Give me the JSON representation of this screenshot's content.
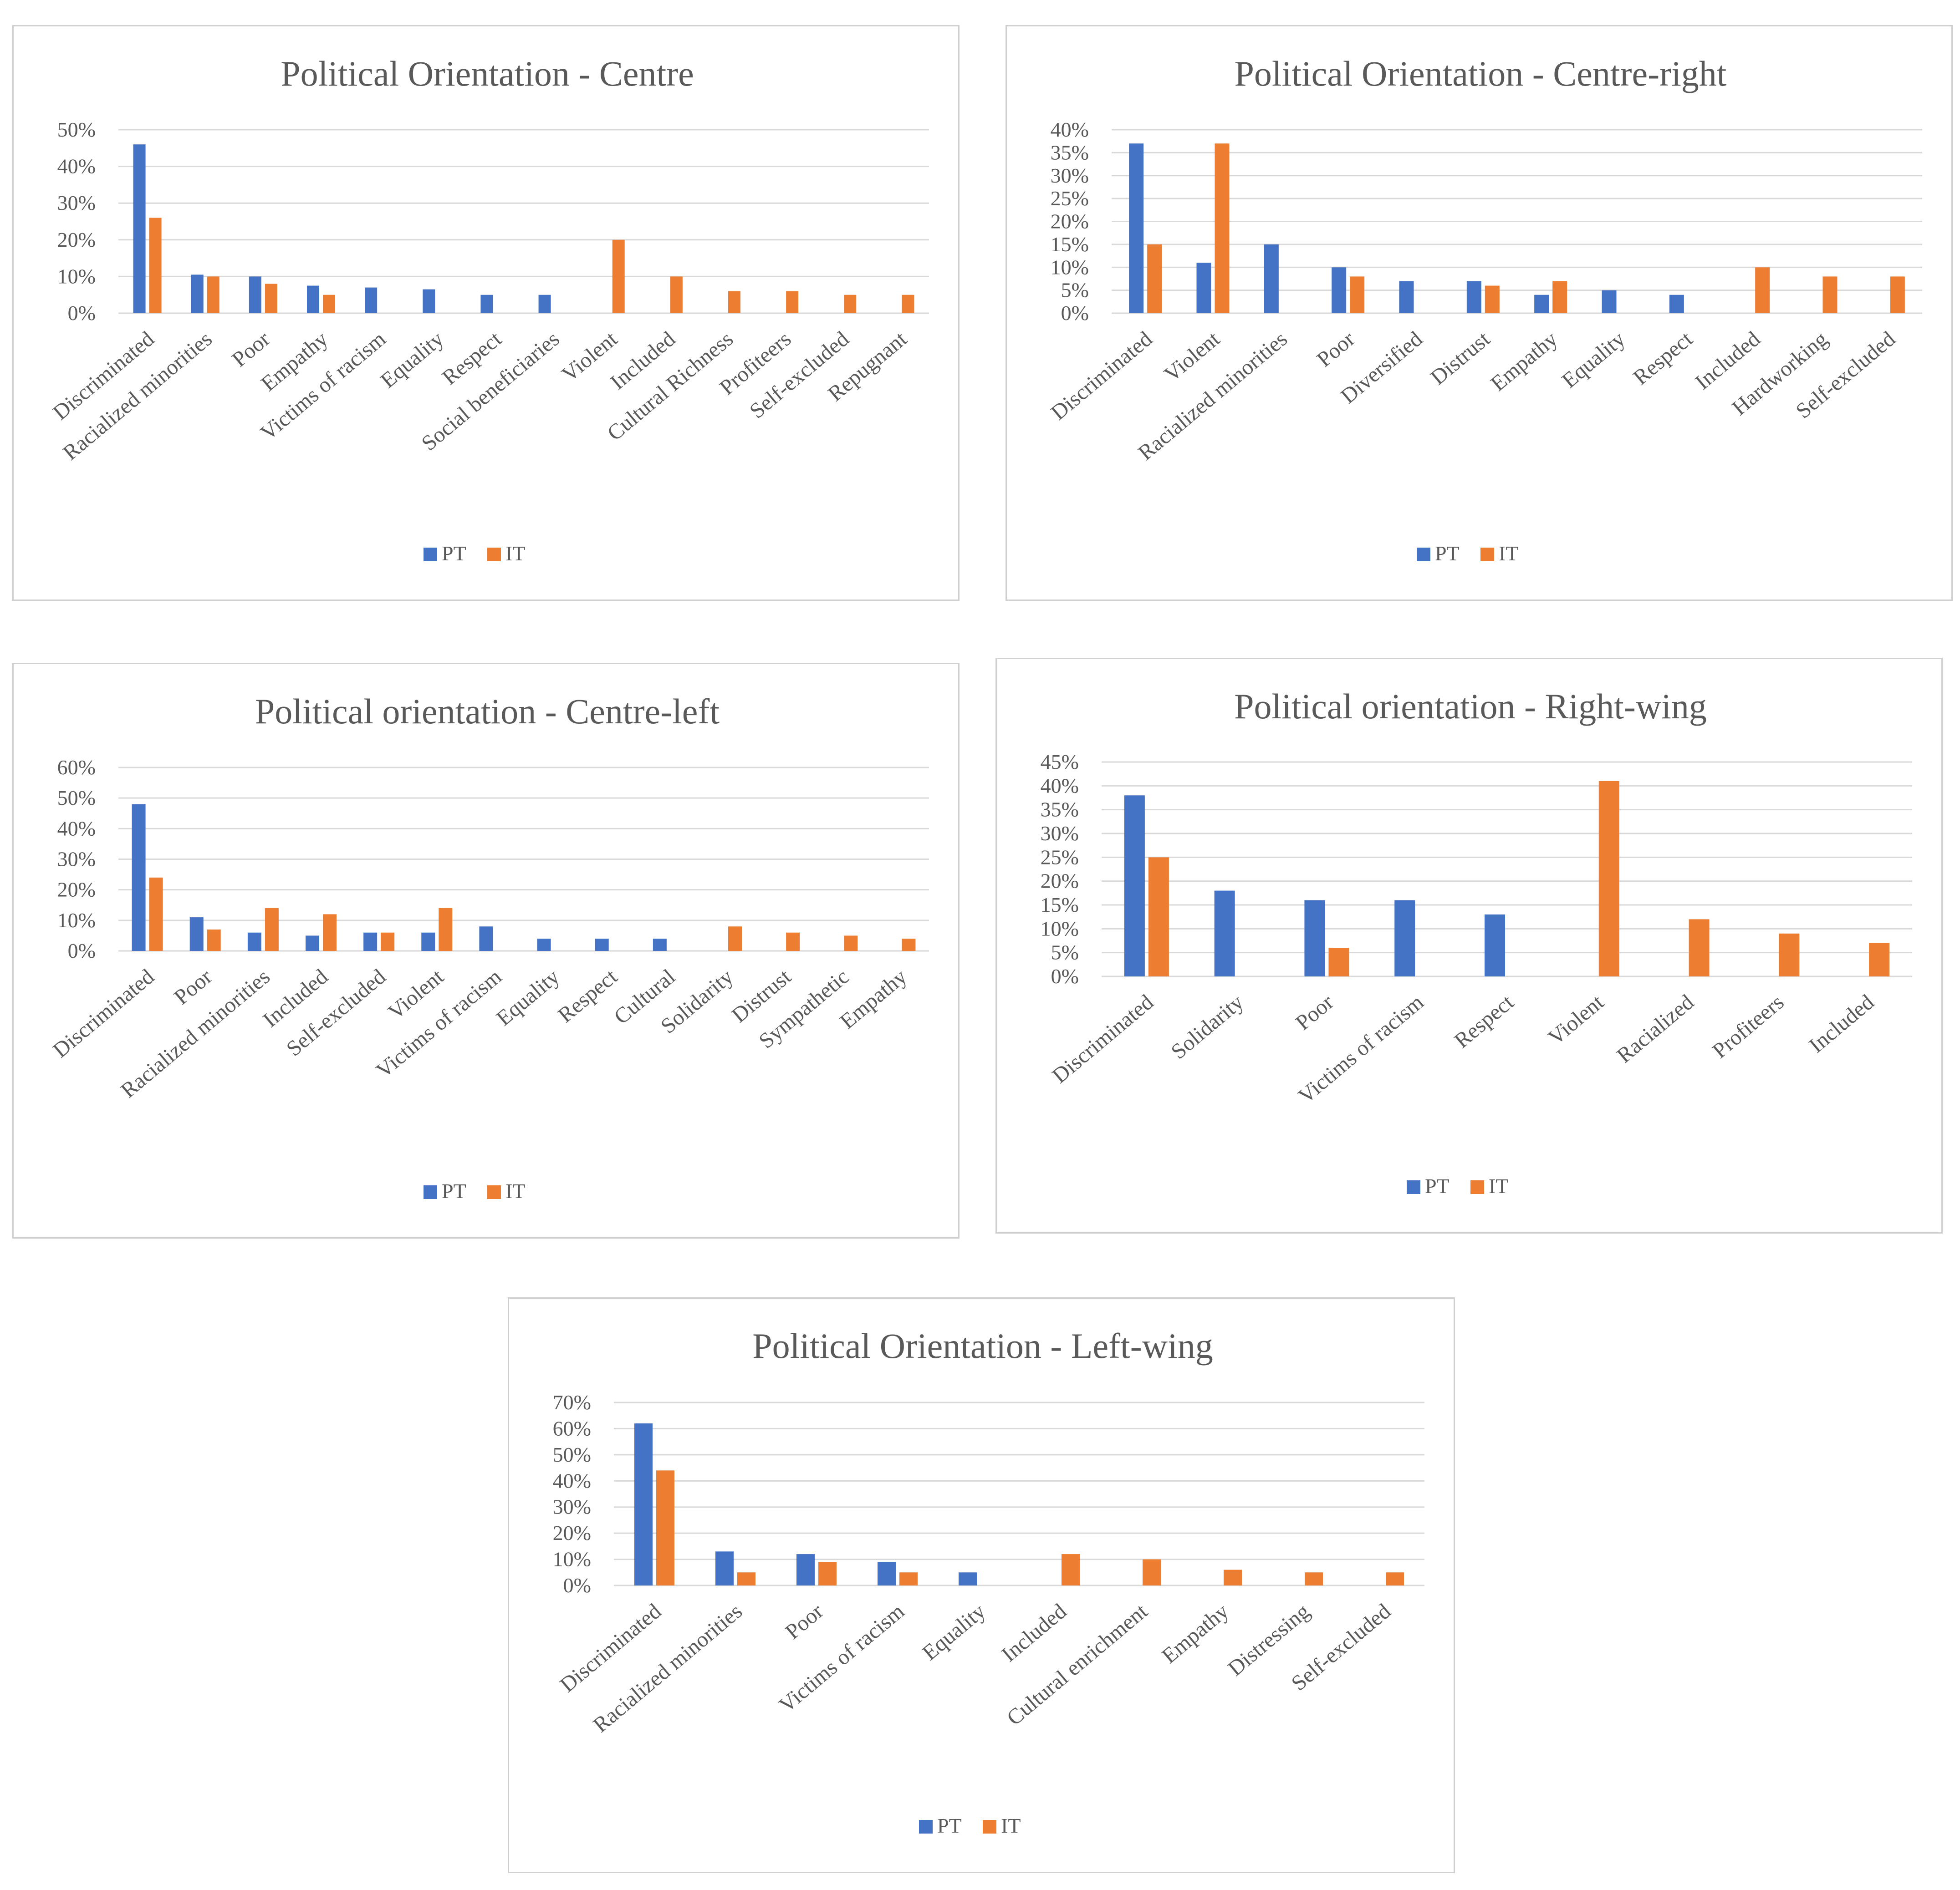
{
  "colors": {
    "PT": "#4472C4",
    "IT": "#ED7D31"
  },
  "chart_data": [
    {
      "type": "bar",
      "title": "Political Orientation - Centre",
      "categories": [
        "Discriminated",
        "Racialized minorities",
        "Poor",
        "Empathy",
        "Victims of racism",
        "Equality",
        "Respect",
        "Social beneficiaries",
        "Violent",
        "Included",
        "Cultural Richness",
        "Profiteers",
        "Self-excluded",
        "Repugnant"
      ],
      "series": [
        {
          "name": "PT",
          "values": [
            46,
            10.5,
            10,
            7.5,
            7,
            6.5,
            5,
            5,
            0,
            0,
            0,
            0,
            0,
            0
          ]
        },
        {
          "name": "IT",
          "values": [
            26,
            10,
            8,
            5,
            0,
            0,
            0,
            0,
            20,
            10,
            6,
            6,
            5,
            5
          ]
        }
      ],
      "yticks": [
        "0%",
        "10%",
        "20%",
        "30%",
        "40%",
        "50%"
      ],
      "ylim": [
        0,
        50
      ],
      "xlabel": "",
      "ylabel": "",
      "legend": "bottom"
    },
    {
      "type": "bar",
      "title": "Political Orientation - Centre-right",
      "categories": [
        "Discriminated",
        "Violent",
        "Racialized minorities",
        "Poor",
        "Diversified",
        "Distrust",
        "Empathy",
        "Equality",
        "Respect",
        "Included",
        "Hardworking",
        "Self-excluded"
      ],
      "series": [
        {
          "name": "PT",
          "values": [
            37,
            11,
            15,
            10,
            7,
            7,
            4,
            5,
            4,
            0,
            0,
            0
          ]
        },
        {
          "name": "IT",
          "values": [
            15,
            37,
            0,
            8,
            0,
            6,
            7,
            0,
            0,
            10,
            8,
            8
          ]
        }
      ],
      "yticks": [
        "0%",
        "5%",
        "10%",
        "15%",
        "20%",
        "25%",
        "30%",
        "35%",
        "40%"
      ],
      "ylim": [
        0,
        40
      ],
      "xlabel": "",
      "ylabel": "",
      "legend": "bottom"
    },
    {
      "type": "bar",
      "title": "Political orientation - Centre-left",
      "categories": [
        "Discriminated",
        "Poor",
        "Racialized minorities",
        "Included",
        "Self-excluded",
        "Violent",
        "Victims of racism",
        "Equality",
        "Respect",
        "Cultural",
        "Solidarity",
        "Distrust",
        "Sympathetic",
        "Empathy"
      ],
      "series": [
        {
          "name": "PT",
          "values": [
            48,
            11,
            6,
            5,
            6,
            6,
            8,
            4,
            4,
            4,
            0,
            0,
            0,
            0
          ]
        },
        {
          "name": "IT",
          "values": [
            24,
            7,
            14,
            12,
            6,
            14,
            0,
            0,
            0,
            0,
            8,
            6,
            5,
            4
          ]
        }
      ],
      "yticks": [
        "0%",
        "10%",
        "20%",
        "30%",
        "40%",
        "50%",
        "60%"
      ],
      "ylim": [
        0,
        60
      ],
      "xlabel": "",
      "ylabel": "",
      "legend": "bottom"
    },
    {
      "type": "bar",
      "title": "Political orientation - Right-wing",
      "categories": [
        "Discriminated",
        "Solidarity",
        "Poor",
        "Victims of racism",
        "Respect",
        "Violent",
        "Racialized",
        "Profiteers",
        "Included"
      ],
      "series": [
        {
          "name": "PT",
          "values": [
            38,
            18,
            16,
            16,
            13,
            0,
            0,
            0,
            0
          ]
        },
        {
          "name": "IT",
          "values": [
            25,
            0,
            6,
            0,
            0,
            41,
            12,
            9,
            7
          ]
        }
      ],
      "yticks": [
        "0%",
        "5%",
        "10%",
        "15%",
        "20%",
        "25%",
        "30%",
        "35%",
        "40%",
        "45%"
      ],
      "ylim": [
        0,
        45
      ],
      "xlabel": "",
      "ylabel": "",
      "legend": "bottom"
    },
    {
      "type": "bar",
      "title": "Political Orientation - Left-wing",
      "categories": [
        "Discriminated",
        "Racialized minorities",
        "Poor",
        "Victims of racism",
        "Equality",
        "Included",
        "Cultural enrichment",
        "Empathy",
        "Distressing",
        "Self-excluded"
      ],
      "series": [
        {
          "name": "PT",
          "values": [
            62,
            13,
            12,
            9,
            5,
            0,
            0,
            0,
            0,
            0
          ]
        },
        {
          "name": "IT",
          "values": [
            44,
            5,
            9,
            5,
            0,
            12,
            10,
            6,
            5,
            5
          ]
        }
      ],
      "yticks": [
        "0%",
        "10%",
        "20%",
        "30%",
        "40%",
        "50%",
        "60%",
        "70%"
      ],
      "ylim": [
        0,
        70
      ],
      "xlabel": "",
      "ylabel": "",
      "legend": "bottom"
    }
  ]
}
